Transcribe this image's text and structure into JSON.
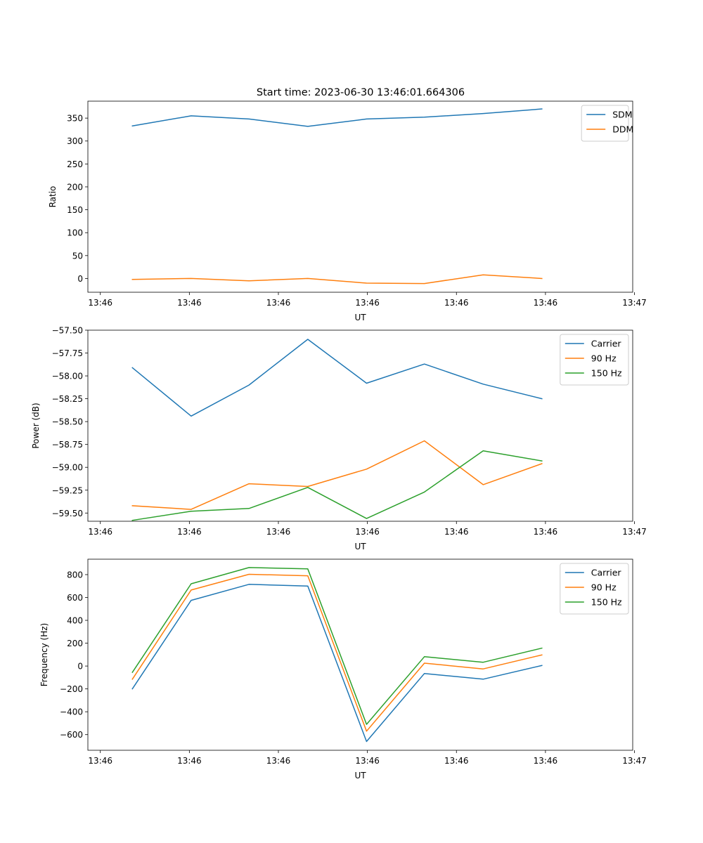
{
  "figure": {
    "title": "Start time: 2023-06-30 13:46:01.664306"
  },
  "colors": {
    "c0": "#1f77b4",
    "c1": "#ff7f0e",
    "c2": "#2ca02c",
    "axis": "#000000",
    "legend_border": "#cccccc"
  },
  "chart_data": [
    {
      "type": "line",
      "title": "Start time: 2023-06-30 13:46:01.664306",
      "xlabel": "UT",
      "ylabel": "Ratio",
      "x_ticks": [
        "13:46",
        "13:46",
        "13:46",
        "13:46",
        "13:46",
        "13:46",
        "13:47"
      ],
      "y_ticks": [
        "0",
        "50",
        "100",
        "150",
        "200",
        "250",
        "300",
        "350"
      ],
      "x_tick_values": [
        0,
        10,
        20,
        30,
        40,
        50,
        60
      ],
      "y_tick_values": [
        0,
        50,
        100,
        150,
        200,
        250,
        300,
        350
      ],
      "xlim": [
        -1.4,
        59.8
      ],
      "ylim": [
        -30,
        387
      ],
      "x": [
        3.6,
        10.2,
        16.7,
        23.3,
        29.9,
        36.4,
        43.0,
        49.6
      ],
      "series": [
        {
          "name": "SDM",
          "values": [
            333,
            355,
            348,
            332,
            348,
            352,
            360,
            370
          ]
        },
        {
          "name": "DDM",
          "values": [
            -2,
            0,
            -5,
            0,
            -10,
            -11,
            8,
            0
          ]
        }
      ],
      "legend": "top-right",
      "grid": false
    },
    {
      "type": "line",
      "xlabel": "UT",
      "ylabel": "Power (dB)",
      "x_ticks": [
        "13:46",
        "13:46",
        "13:46",
        "13:46",
        "13:46",
        "13:46",
        "13:47"
      ],
      "y_ticks": [
        "−59.50",
        "−59.25",
        "−59.00",
        "−58.75",
        "−58.50",
        "−58.25",
        "−58.00",
        "−57.75",
        "−57.50"
      ],
      "x_tick_values": [
        0,
        10,
        20,
        30,
        40,
        50,
        60
      ],
      "y_tick_values": [
        -59.5,
        -59.25,
        -59.0,
        -58.75,
        -58.5,
        -58.25,
        -58.0,
        -57.75,
        -57.5
      ],
      "xlim": [
        -1.4,
        59.8
      ],
      "ylim": [
        -59.59,
        -57.5
      ],
      "x": [
        3.6,
        10.2,
        16.7,
        23.3,
        29.9,
        36.4,
        43.0,
        49.6
      ],
      "series": [
        {
          "name": "Carrier",
          "values": [
            -57.91,
            -58.44,
            -58.1,
            -57.6,
            -58.08,
            -57.87,
            -58.09,
            -58.25
          ]
        },
        {
          "name": "90 Hz",
          "values": [
            -59.42,
            -59.46,
            -59.18,
            -59.21,
            -59.02,
            -58.71,
            -59.19,
            -58.96
          ]
        },
        {
          "name": "150 Hz",
          "values": [
            -59.58,
            -59.48,
            -59.45,
            -59.22,
            -59.56,
            -59.27,
            -58.82,
            -58.93
          ]
        }
      ],
      "legend": "top-right",
      "grid": false
    },
    {
      "type": "line",
      "xlabel": "UT",
      "ylabel": "Frequency (Hz)",
      "x_ticks": [
        "13:46",
        "13:46",
        "13:46",
        "13:46",
        "13:46",
        "13:46",
        "13:47"
      ],
      "y_ticks": [
        "−600",
        "−400",
        "−200",
        "0",
        "200",
        "400",
        "600",
        "800"
      ],
      "x_tick_values": [
        0,
        10,
        20,
        30,
        40,
        50,
        60
      ],
      "y_tick_values": [
        -600,
        -400,
        -200,
        0,
        200,
        400,
        600,
        800
      ],
      "xlim": [
        -1.4,
        59.8
      ],
      "ylim": [
        -737,
        935
      ],
      "x": [
        3.6,
        10.2,
        16.7,
        23.3,
        29.9,
        36.4,
        43.0,
        49.6
      ],
      "series": [
        {
          "name": "Carrier",
          "values": [
            -200,
            575,
            715,
            700,
            -660,
            -65,
            -115,
            5
          ]
        },
        {
          "name": "90 Hz",
          "values": [
            -115,
            665,
            803,
            790,
            -570,
            25,
            -25,
            97
          ]
        },
        {
          "name": "150 Hz",
          "values": [
            -55,
            720,
            862,
            850,
            -510,
            82,
            33,
            157
          ]
        }
      ],
      "legend": "top-right",
      "grid": false
    }
  ]
}
